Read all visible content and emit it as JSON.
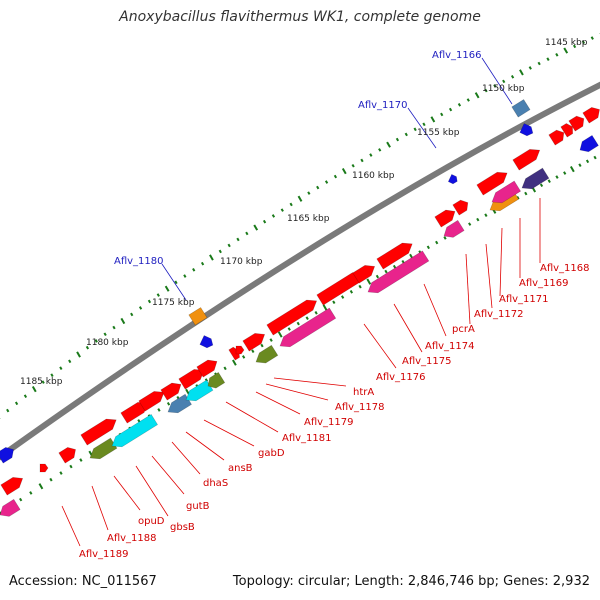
{
  "title": "Anoxybacillus flavithermus WK1, complete genome",
  "footer": {
    "accession": "Accession: NC_011567",
    "topology": "Topology: circular; Length: 2,846,746 bp; Genes: 2,932"
  },
  "tick_labels": [
    "1145 kbp",
    "1150 kbp",
    "1155 kbp",
    "1160 kbp",
    "1165 kbp",
    "1170 kbp",
    "1175 kbp",
    "1180 kbp",
    "1185 kbp"
  ],
  "top_labels": [
    "Aflv_1166",
    "Aflv_1170",
    "Aflv_1180"
  ],
  "gene_labels": [
    "Aflv_1168",
    "Aflv_1169",
    "Aflv_1171",
    "Aflv_1172",
    "pcrA",
    "Aflv_1174",
    "Aflv_1175",
    "Aflv_1176",
    "htrA",
    "Aflv_1178",
    "Aflv_1179",
    "Aflv_1181",
    "gabD",
    "ansB",
    "dhaS",
    "gutB",
    "gbsB",
    "opuD",
    "Aflv_1188",
    "Aflv_1189"
  ],
  "colors": {
    "cds": "#ff0000",
    "pink": "#e8248c",
    "cyan": "#00e0f0",
    "olive": "#6a8a20",
    "steel": "#4a80b0",
    "orange": "#f09010",
    "navy": "#403080",
    "blue": "#1010e0",
    "backbone": "#888888",
    "tick": "#1a7a1a"
  }
}
